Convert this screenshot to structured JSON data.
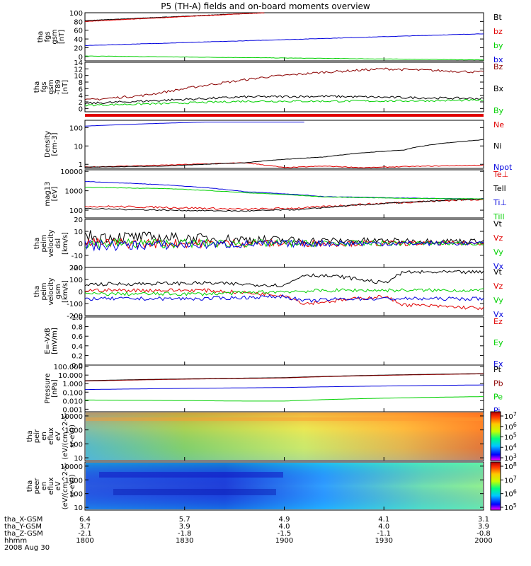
{
  "title": "P5 (TH-A) fields and on-board moments overview",
  "colors": {
    "black": "#000000",
    "red": "#e00000",
    "darkred": "#8b0000",
    "green": "#00d000",
    "blue": "#0000dd"
  },
  "chart_data": [
    {
      "type": "line",
      "ylabel": [
        "tha",
        "fgs",
        "gsm",
        "[nT]"
      ],
      "ylim": [
        -10,
        100
      ],
      "yticks": [
        "100",
        "80",
        "60",
        "40",
        "20",
        "0"
      ],
      "ytickvals": [
        100,
        80,
        60,
        40,
        20,
        0
      ],
      "series": [
        {
          "name": "Bt",
          "color": "black",
          "x": [
            0,
            0.45
          ],
          "y": [
            82,
            100
          ]
        },
        {
          "name": "bz",
          "color": "red",
          "x": [
            0,
            0.45
          ],
          "y": [
            80,
            100
          ]
        },
        {
          "name": "by",
          "color": "green",
          "x": [
            0,
            1
          ],
          "y": [
            1,
            -8
          ]
        },
        {
          "name": "bx",
          "color": "blue",
          "x": [
            0,
            1
          ],
          "y": [
            25,
            52
          ]
        }
      ]
    },
    {
      "type": "line",
      "ylabel": [
        "tha",
        "fgs",
        "gsm",
        "-T89",
        "[nT]"
      ],
      "ylim": [
        -1,
        14
      ],
      "yticks": [
        "14",
        "12",
        "10",
        "8",
        "6",
        "4",
        "2",
        "0"
      ],
      "ytickvals": [
        14,
        12,
        10,
        8,
        6,
        4,
        2,
        0
      ],
      "series": [
        {
          "name": "Bz",
          "color": "darkred",
          "x": [
            0,
            0.15,
            0.3,
            0.45,
            0.6,
            0.75,
            1
          ],
          "y": [
            2.5,
            4,
            7,
            9.5,
            11,
            12,
            11
          ]
        },
        {
          "name": "Bx",
          "color": "black",
          "x": [
            0,
            0.2,
            0.4,
            0.6,
            0.8,
            1
          ],
          "y": [
            1.5,
            2.5,
            3.5,
            3.7,
            3.3,
            3
          ]
        },
        {
          "name": "By",
          "color": "green",
          "x": [
            0,
            0.2,
            0.4,
            0.6,
            0.8,
            1
          ],
          "y": [
            1,
            1.5,
            2.2,
            2.2,
            2.3,
            2.5
          ]
        }
      ]
    },
    {
      "type": "line",
      "ylabel": [
        "Density",
        "[cm-3]"
      ],
      "ylim": [
        0.6,
        250
      ],
      "log": true,
      "yticks": [
        "100",
        "10",
        "1"
      ],
      "ytickvals": [
        100,
        10,
        1
      ],
      "series": [
        {
          "name": "Ne",
          "color": "red",
          "x": [
            0,
            0.2,
            0.4,
            0.5,
            0.6,
            0.7,
            0.8,
            1
          ],
          "y": [
            0.7,
            0.9,
            1.2,
            0.65,
            0.8,
            0.65,
            0.75,
            0.9
          ]
        },
        {
          "name": "Ni",
          "color": "black",
          "x": [
            0,
            0.2,
            0.4,
            0.6,
            0.8,
            1
          ],
          "y": [
            0.7,
            0.8,
            1.2,
            2.5,
            6,
            22
          ]
        },
        {
          "name": "Npot",
          "color": "blue",
          "x": [
            0,
            0.15,
            0.3,
            0.55
          ],
          "y": [
            120,
            160,
            200,
            200
          ]
        }
      ]
    },
    {
      "type": "line",
      "ylabel": [
        "mag13",
        "[eV]"
      ],
      "ylim": [
        40,
        12000
      ],
      "log": true,
      "yticks": [
        "10000",
        "1000",
        "100"
      ],
      "ytickvals": [
        10000,
        1000,
        100
      ],
      "series": [
        {
          "name": "Te⊥",
          "color": "red",
          "x": [
            0,
            0.2,
            0.4,
            0.55,
            0.7,
            0.85,
            1
          ],
          "y": [
            160,
            140,
            110,
            130,
            200,
            280,
            370
          ]
        },
        {
          "name": "Tell",
          "color": "black",
          "x": [
            0,
            0.2,
            0.4,
            0.55,
            0.7,
            0.85,
            1
          ],
          "y": [
            120,
            100,
            90,
            110,
            190,
            280,
            380
          ]
        },
        {
          "name": "Ti⊥",
          "color": "blue",
          "x": [
            0,
            0.2,
            0.4,
            0.6,
            0.8,
            1
          ],
          "y": [
            3000,
            2000,
            900,
            500,
            420,
            380
          ]
        },
        {
          "name": "Till",
          "color": "green",
          "x": [
            0,
            0.2,
            0.4,
            0.6,
            0.8,
            1
          ],
          "y": [
            1500,
            1300,
            800,
            480,
            410,
            380
          ]
        }
      ]
    },
    {
      "type": "line",
      "ylabel": [
        "tha",
        "peim",
        "velocity",
        "dsl",
        "[km/s]"
      ],
      "ylim": [
        -20,
        20
      ],
      "yticks": [
        "20",
        "10",
        "0",
        "-10",
        "-20"
      ],
      "ytickvals": [
        20,
        10,
        0,
        -10,
        -20
      ],
      "series": [
        {
          "name": "Vt",
          "color": "black",
          "x": [
            0,
            0.3,
            0.6,
            1
          ],
          "y": [
            6,
            4,
            2,
            2
          ]
        },
        {
          "name": "Vz",
          "color": "red",
          "x": [
            0,
            0.3,
            0.6,
            1
          ],
          "y": [
            0,
            0,
            0,
            0
          ]
        },
        {
          "name": "Vy",
          "color": "green",
          "x": [
            0,
            0.3,
            0.6,
            1
          ],
          "y": [
            0,
            0,
            0,
            0
          ]
        },
        {
          "name": "Vx",
          "color": "blue",
          "x": [
            0,
            0.3,
            0.6,
            1
          ],
          "y": [
            -2,
            -1,
            0,
            0
          ]
        }
      ]
    },
    {
      "type": "line",
      "ylabel": [
        "tha",
        "peim",
        "velocity",
        "gsm",
        "[km/s]"
      ],
      "ylim": [
        -200,
        200
      ],
      "yticks": [
        "200",
        "100",
        "0",
        "-100",
        "-200"
      ],
      "ytickvals": [
        200,
        100,
        0,
        -100,
        -200
      ],
      "series": [
        {
          "name": "Vt",
          "color": "black",
          "x": [
            0,
            0.3,
            0.5,
            0.55,
            0.65,
            0.75,
            0.8,
            1
          ],
          "y": [
            60,
            70,
            50,
            140,
            120,
            70,
            160,
            160
          ]
        },
        {
          "name": "Vz",
          "color": "red",
          "x": [
            0,
            0.3,
            0.5,
            0.55,
            0.65,
            0.75,
            0.8,
            1
          ],
          "y": [
            10,
            10,
            -30,
            -100,
            -70,
            -40,
            -110,
            -140
          ]
        },
        {
          "name": "Vy",
          "color": "green",
          "x": [
            0,
            0.3,
            0.5,
            0.65,
            0.8,
            1
          ],
          "y": [
            -20,
            -20,
            0,
            10,
            10,
            10
          ]
        },
        {
          "name": "Vx",
          "color": "blue",
          "x": [
            0,
            0.3,
            0.5,
            0.55,
            0.65,
            0.8,
            1
          ],
          "y": [
            -60,
            -60,
            -40,
            -80,
            -60,
            -60,
            -60
          ]
        }
      ]
    },
    {
      "type": "line",
      "ylabel": [
        "E=-VxB",
        "[mV/m]"
      ],
      "ylim": [
        0,
        1
      ],
      "yticks": [
        "1.0",
        "0.8",
        "0.6",
        "0.4",
        "0.2",
        "0.0"
      ],
      "ytickvals": [
        1,
        0.8,
        0.6,
        0.4,
        0.2,
        0
      ],
      "series": [
        {
          "name": "Ez",
          "color": "red",
          "x": [],
          "y": []
        },
        {
          "name": "Ey",
          "color": "green",
          "x": [],
          "y": []
        },
        {
          "name": "Ex",
          "color": "blue",
          "x": [],
          "y": []
        }
      ]
    },
    {
      "type": "line",
      "ylabel": [
        "Pressure",
        "[nPa]"
      ],
      "ylim": [
        0.0005,
        150
      ],
      "log": true,
      "yticks": [
        "100.000",
        "10.000",
        "1.000",
        "0.100",
        "0.010",
        "0.001"
      ],
      "ytickvals": [
        100,
        10,
        1,
        0.1,
        0.01,
        0.001
      ],
      "series": [
        {
          "name": "Pt",
          "color": "black",
          "x": [
            0,
            0.5,
            1
          ],
          "y": [
            2.2,
            5,
            15
          ]
        },
        {
          "name": "Pb",
          "color": "darkred",
          "x": [
            0,
            0.5,
            1
          ],
          "y": [
            2,
            4.6,
            14
          ]
        },
        {
          "name": "Pe",
          "color": "green",
          "x": [
            0,
            0.4,
            0.5,
            1
          ],
          "y": [
            0.012,
            0.009,
            0.009,
            0.03
          ]
        },
        {
          "name": "Pi",
          "color": "blue",
          "x": [
            0,
            0.5,
            1
          ],
          "y": [
            0.2,
            0.35,
            0.7
          ]
        }
      ]
    },
    {
      "type": "heatmap",
      "ylabel": [
        "tha",
        "peir",
        "en",
        "eflux",
        "eV",
        "(eV/(cm^2-s-",
        "sr-eV))"
      ],
      "yticks": [
        "10000",
        "1000",
        "100",
        "10"
      ],
      "ytickvals": [
        10000,
        1000,
        100,
        10
      ],
      "colorbar": {
        "ticks": [
          "10^7",
          "10^6",
          "10^5",
          "10^4",
          "10^3"
        ]
      }
    },
    {
      "type": "heatmap",
      "ylabel": [
        "tha",
        "peer",
        "en",
        "eflux",
        "eV",
        "(eV/(cm^2-s-",
        "sr-eV))"
      ],
      "yticks": [
        "10000",
        "1000",
        "100",
        "10"
      ],
      "ytickvals": [
        10000,
        1000,
        100,
        10
      ],
      "colorbar": {
        "ticks": [
          "10^8",
          "10^7",
          "10^6",
          "10^5"
        ]
      }
    }
  ],
  "ephemeris": {
    "labels": [
      "tha_X-GSM",
      "tha_Y-GSM",
      "tha_Z-GSM",
      "hhmm",
      "2008 Aug 30"
    ],
    "columns": [
      {
        "x": "6.4",
        "y": "3.7",
        "z": "-2.1",
        "t": "1800"
      },
      {
        "x": "5.7",
        "y": "3.9",
        "z": "-1.8",
        "t": "1830"
      },
      {
        "x": "4.9",
        "y": "4.0",
        "z": "-1.5",
        "t": "1900"
      },
      {
        "x": "4.1",
        "y": "4.0",
        "z": "-1.1",
        "t": "1930"
      },
      {
        "x": "3.1",
        "y": "3.9",
        "z": "-0.8",
        "t": "2000"
      }
    ]
  }
}
